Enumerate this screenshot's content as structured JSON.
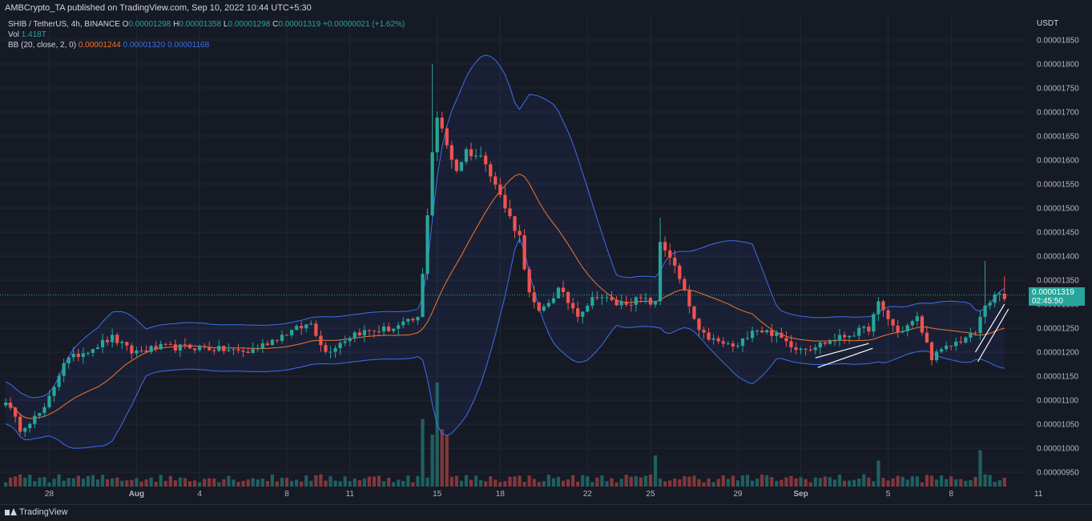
{
  "header": {
    "published": "AMBCrypto_TA published on TradingView.com, Sep 10, 2022 10:44 UTC+5:30"
  },
  "legend": {
    "symbol": "SHIB / TetherUS, 4h, BINANCE",
    "open_label": "O",
    "open": "0.00001298",
    "high_label": "H",
    "high": "0.00001358",
    "low_label": "L",
    "low": "0.00001298",
    "close_label": "C",
    "close": "0.00001319",
    "change": "+0.00000021 (+1.62%)",
    "vol_label": "Vol",
    "vol": "1.418T",
    "bb_label": "BB (20, close, 2, 0)",
    "bb_basis": "0.00001244",
    "bb_upper": "0.00001320",
    "bb_lower": "0.00001168"
  },
  "axis": {
    "currency": "USDT",
    "current_price": "0.00001319",
    "countdown": "02:45:50"
  },
  "footer": {
    "logo": "TradingView"
  },
  "colors": {
    "background": "#161a25",
    "up": "#26a69a",
    "down": "#ef5350",
    "bb_band": "#3d6ef0",
    "bb_basis": "#f7752a",
    "grid": "#232733"
  },
  "chart_data": {
    "type": "candlestick",
    "title": "SHIB / TetherUS, 4h, BINANCE",
    "y_ticks": [
      9.5e-06,
      1e-05,
      1.05e-05,
      1.1e-05,
      1.15e-05,
      1.2e-05,
      1.25e-05,
      1.3e-05,
      1.35e-05,
      1.4e-05,
      1.45e-05,
      1.5e-05,
      1.55e-05,
      1.6e-05,
      1.65e-05,
      1.7e-05,
      1.75e-05,
      1.8e-05,
      1.85e-05
    ],
    "y_tick_labels": [
      "0.00000950",
      "0.00001000",
      "0.00001050",
      "0.00001100",
      "0.00001150",
      "0.00001200",
      "0.00001250",
      "0.00001300",
      "0.00001350",
      "0.00001400",
      "0.00001450",
      "0.00001500",
      "0.00001550",
      "0.00001600",
      "0.00001650",
      "0.00001700",
      "0.00001750",
      "0.00001800",
      "0.00001850"
    ],
    "ylim": [
      9.2e-06,
      1.9e-05
    ],
    "x_tick_labels": [
      "28",
      "Aug",
      "4",
      "8",
      "11",
      "15",
      "18",
      "22",
      "25",
      "29",
      "Sep",
      "5",
      "8",
      "11"
    ],
    "x_tick_bar_index": [
      9,
      27,
      40,
      58,
      71,
      89,
      102,
      120,
      133,
      151,
      164,
      182,
      195,
      213
    ],
    "close_keypoints": [
      [
        0,
        1.1e-05
      ],
      [
        3,
        1.04e-05
      ],
      [
        8,
        1.08e-05
      ],
      [
        12,
        1.18e-05
      ],
      [
        18,
        1.21e-05
      ],
      [
        22,
        1.23e-05
      ],
      [
        26,
        1.2e-05
      ],
      [
        32,
        1.21e-05
      ],
      [
        40,
        1.21e-05
      ],
      [
        50,
        1.2e-05
      ],
      [
        58,
        1.24e-05
      ],
      [
        63,
        1.26e-05
      ],
      [
        66,
        1.2e-05
      ],
      [
        72,
        1.24e-05
      ],
      [
        80,
        1.25e-05
      ],
      [
        85,
        1.27e-05
      ],
      [
        86,
        1.36e-05
      ],
      [
        88,
        1.62e-05
      ],
      [
        89,
        1.69e-05
      ],
      [
        91,
        1.63e-05
      ],
      [
        93,
        1.58e-05
      ],
      [
        95,
        1.62e-05
      ],
      [
        99,
        1.6e-05
      ],
      [
        101,
        1.55e-05
      ],
      [
        103,
        1.5e-05
      ],
      [
        106,
        1.44e-05
      ],
      [
        108,
        1.32e-05
      ],
      [
        110,
        1.28e-05
      ],
      [
        114,
        1.33e-05
      ],
      [
        118,
        1.28e-05
      ],
      [
        122,
        1.32e-05
      ],
      [
        126,
        1.3e-05
      ],
      [
        131,
        1.31e-05
      ],
      [
        134,
        1.3e-05
      ],
      [
        135,
        1.43e-05
      ],
      [
        137,
        1.4e-05
      ],
      [
        139,
        1.35e-05
      ],
      [
        143,
        1.24e-05
      ],
      [
        147,
        1.22e-05
      ],
      [
        151,
        1.21e-05
      ],
      [
        154,
        1.25e-05
      ],
      [
        158,
        1.24e-05
      ],
      [
        163,
        1.21e-05
      ],
      [
        166,
        1.21e-05
      ],
      [
        172,
        1.23e-05
      ],
      [
        178,
        1.25e-05
      ],
      [
        180,
        1.3e-05
      ],
      [
        184,
        1.24e-05
      ],
      [
        188,
        1.27e-05
      ],
      [
        191,
        1.19e-05
      ],
      [
        196,
        1.22e-05
      ],
      [
        200,
        1.24e-05
      ],
      [
        202,
        1.3e-05
      ],
      [
        205,
        1.32e-05
      ],
      [
        206,
        1.31e-05
      ]
    ],
    "volume_spikes": [
      [
        86,
        0.65
      ],
      [
        88,
        0.5
      ],
      [
        89,
        1.0
      ],
      [
        90,
        0.55
      ],
      [
        91,
        0.5
      ],
      [
        134,
        0.3
      ],
      [
        180,
        0.25
      ],
      [
        201,
        0.35
      ]
    ],
    "bb_period": 20,
    "bb_mult": 2,
    "bar_count": 207,
    "trendlines": [
      [
        [
          167,
          1.188e-05
        ],
        [
          178,
          1.218e-05
        ]
      ],
      [
        [
          200,
          1.2e-05
        ],
        [
          206,
          1.3e-05
        ]
      ]
    ]
  }
}
